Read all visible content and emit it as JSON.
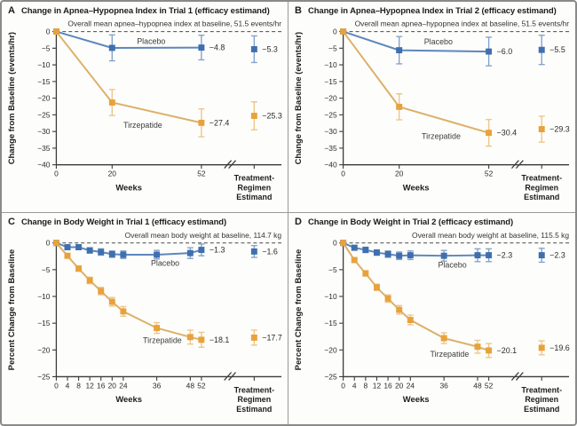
{
  "figure": {
    "background": "#fdfdfb",
    "colors": {
      "placebo": {
        "marker": "#3f6fae",
        "line": "#5d86bd",
        "error": "#84a3cd"
      },
      "tirzepatide": {
        "marker": "#e8a23b",
        "line": "#dcb069",
        "error": "#edc68b"
      },
      "axis": "#3a3a3a",
      "text": "#2b2b2b",
      "baseline_dash": "#4a4a4a"
    },
    "estimand_label_lines": [
      "Treatment-",
      "Regimen",
      "Estimand"
    ]
  },
  "chart_data": [
    {
      "panel": "A",
      "type": "line",
      "title": "Change in Apnea–Hypopnea Index in Trial 1 (efficacy estimand)",
      "subtitle": "Overall mean apnea–hypopnea index at baseline, 51.5 events/hr",
      "xlabel": "Weeks",
      "ylabel": "Change from Baseline (events/hr)",
      "ylim": [
        -40,
        0
      ],
      "ytick_step": 5,
      "xticks": [
        0,
        20,
        52
      ],
      "series": [
        {
          "key": "placebo",
          "name": "Placebo",
          "x": [
            0,
            20,
            52
          ],
          "y": [
            0,
            -4.9,
            -4.8
          ],
          "err": [
            0,
            3.9,
            3.7
          ],
          "end_label": "−4.8",
          "estimand": {
            "y": -5.3,
            "err": 4.0,
            "label": "−5.3"
          },
          "name_label": {
            "week": 34,
            "y": -3.7
          }
        },
        {
          "key": "tirzepatide",
          "name": "Tirzepatide",
          "x": [
            0,
            20,
            52
          ],
          "y": [
            0,
            -21.3,
            -27.4
          ],
          "err": [
            0,
            3.9,
            4.2
          ],
          "end_label": "−27.4",
          "estimand": {
            "y": -25.3,
            "err": 4.2,
            "label": "−25.3"
          },
          "name_label": {
            "week": 31,
            "y": -28.9
          }
        }
      ]
    },
    {
      "panel": "B",
      "type": "line",
      "title": "Change in Apnea–Hypopnea Index in Trial 2 (efficacy estimand)",
      "subtitle": "Overall mean apnea–hypopnea index at baseline, 51.5 events/hr",
      "xlabel": "Weeks",
      "ylabel": "Change from Baseline (events/hr)",
      "ylim": [
        -40,
        0
      ],
      "ytick_step": 5,
      "xticks": [
        0,
        20,
        52
      ],
      "series": [
        {
          "key": "placebo",
          "name": "Placebo",
          "x": [
            0,
            20,
            52
          ],
          "y": [
            0,
            -5.6,
            -6.0
          ],
          "err": [
            0,
            4.1,
            4.3
          ],
          "end_label": "−6.0",
          "estimand": {
            "y": -5.5,
            "err": 4.4,
            "label": "−5.5"
          },
          "name_label": {
            "week": 34,
            "y": -3.9
          }
        },
        {
          "key": "tirzepatide",
          "name": "Tirzepatide",
          "x": [
            0,
            20,
            52
          ],
          "y": [
            0,
            -22.6,
            -30.4
          ],
          "err": [
            0,
            3.9,
            4.0
          ],
          "end_label": "−30.4",
          "estimand": {
            "y": -29.3,
            "err": 3.9,
            "label": "−29.3"
          },
          "name_label": {
            "week": 35,
            "y": -32.2
          }
        }
      ]
    },
    {
      "panel": "C",
      "type": "line",
      "title": "Change in Body Weight in Trial 1 (efficacy estimand)",
      "subtitle": "Overall mean body weight at baseline, 114.7 kg",
      "xlabel": "Weeks",
      "ylabel": "Percent Change from Baseline",
      "ylim": [
        -25,
        0
      ],
      "ytick_step": 5,
      "xticks": [
        0,
        4,
        8,
        12,
        16,
        20,
        24,
        36,
        48,
        52
      ],
      "series": [
        {
          "key": "placebo",
          "name": "Placebo",
          "x": [
            0,
            4,
            8,
            12,
            16,
            20,
            24,
            36,
            48,
            52
          ],
          "y": [
            0,
            -0.8,
            -0.8,
            -1.4,
            -1.7,
            -2.1,
            -2.2,
            -2.2,
            -1.9,
            -1.3
          ],
          "err": [
            0,
            0.4,
            0.4,
            0.5,
            0.6,
            0.6,
            0.7,
            0.8,
            1.0,
            1.1
          ],
          "end_label": "−1.3",
          "estimand": {
            "y": -1.6,
            "err": 1.1,
            "label": "−1.6"
          },
          "name_label": {
            "week": 39,
            "y": -4.3
          }
        },
        {
          "key": "tirzepatide",
          "name": "Tirzepatide",
          "x": [
            0,
            4,
            8,
            12,
            16,
            20,
            24,
            36,
            48,
            52
          ],
          "y": [
            0,
            -2.4,
            -4.8,
            -7.0,
            -9.0,
            -11.0,
            -12.8,
            -15.9,
            -17.6,
            -18.1
          ],
          "err": [
            0,
            0.4,
            0.5,
            0.6,
            0.7,
            0.8,
            0.9,
            1.0,
            1.3,
            1.4
          ],
          "end_label": "−18.1",
          "estimand": {
            "y": -17.7,
            "err": 1.4,
            "label": "−17.7"
          },
          "name_label": {
            "week": 38,
            "y": -18.7
          }
        }
      ]
    },
    {
      "panel": "D",
      "type": "line",
      "title": "Change in Body Weight in Trial 2 (efficacy estimand)",
      "subtitle": "Overall mean body weight at baseline, 115.5 kg",
      "xlabel": "Weeks",
      "ylabel": "Percent Change from Baseline",
      "ylim": [
        -25,
        0
      ],
      "ytick_step": 5,
      "xticks": [
        0,
        4,
        8,
        12,
        16,
        20,
        24,
        36,
        48,
        52
      ],
      "series": [
        {
          "key": "placebo",
          "name": "Placebo",
          "x": [
            0,
            4,
            8,
            12,
            16,
            20,
            24,
            36,
            48,
            52
          ],
          "y": [
            0,
            -0.9,
            -1.3,
            -1.8,
            -2.1,
            -2.4,
            -2.3,
            -2.4,
            -2.3,
            -2.3
          ],
          "err": [
            0,
            0.4,
            0.5,
            0.5,
            0.6,
            0.7,
            0.8,
            1.0,
            1.2,
            1.2
          ],
          "end_label": "−2.3",
          "estimand": {
            "y": -2.3,
            "err": 1.3,
            "label": "−2.3"
          },
          "name_label": {
            "week": 39,
            "y": -4.6
          }
        },
        {
          "key": "tirzepatide",
          "name": "Tirzepatide",
          "x": [
            0,
            4,
            8,
            12,
            16,
            20,
            24,
            36,
            48,
            52
          ],
          "y": [
            0,
            -3.2,
            -5.7,
            -8.3,
            -10.4,
            -12.5,
            -14.4,
            -17.8,
            -19.4,
            -20.1
          ],
          "err": [
            0,
            0.4,
            0.5,
            0.6,
            0.7,
            0.8,
            0.9,
            1.0,
            1.2,
            1.3
          ],
          "end_label": "−20.1",
          "estimand": {
            "y": -19.6,
            "err": 1.3,
            "label": "−19.6"
          },
          "name_label": {
            "week": 38,
            "y": -21.3
          }
        }
      ]
    }
  ]
}
